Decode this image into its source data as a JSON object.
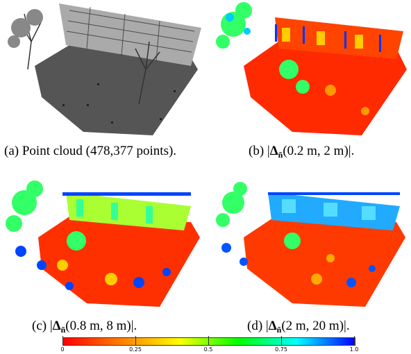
{
  "figure": {
    "panels": [
      {
        "id": "a",
        "label": "(a)",
        "caption": "Point cloud (478,377 points).",
        "colormap": "grayscale"
      },
      {
        "id": "b",
        "label": "(b)",
        "delta_symbol": "Δ",
        "subscript": "ñ",
        "args": "(0.2 m, 2 m)",
        "colormap": "jet"
      },
      {
        "id": "c",
        "label": "(c)",
        "delta_symbol": "Δ",
        "subscript": "ñ",
        "args": "(0.8 m, 8 m)",
        "colormap": "jet"
      },
      {
        "id": "d",
        "label": "(d)",
        "delta_symbol": "Δ",
        "subscript": "ñ",
        "args": "(2 m, 20 m)",
        "colormap": "jet"
      }
    ],
    "colorbar": {
      "ticks": [
        "0",
        "0.25",
        "0.5",
        "0.75",
        "1.0"
      ],
      "tick_values": [
        0,
        0.25,
        0.5,
        0.75,
        1.0
      ],
      "colors": [
        "#ff0000",
        "#ff8000",
        "#ffff00",
        "#00ff00",
        "#00ffff",
        "#0000ff"
      ]
    }
  }
}
